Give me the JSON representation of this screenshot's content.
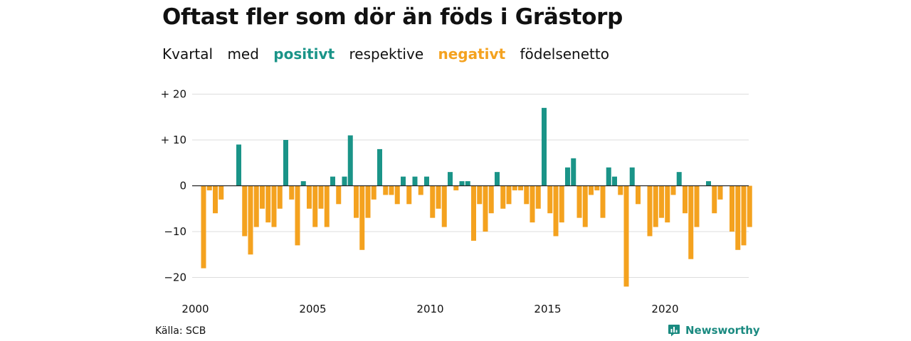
{
  "title": "Oftast fler som dör än föds i Grästorp",
  "subtitle": {
    "w1": "Kvartal",
    "w2": "med",
    "positive": "positivt",
    "w3": "respektive",
    "negative": "negativt",
    "w4": "födelsenetto"
  },
  "source": "Källa: SCB",
  "brand": {
    "name": "Newsworthy",
    "icon": "newsworthy-logo-icon"
  },
  "colors": {
    "positive": "#1a9488",
    "negative": "#f4a21f",
    "grid": "#dddddd",
    "zero": "#222222"
  },
  "chart_data": {
    "type": "bar",
    "x_ticks": [
      "2000",
      "2005",
      "2010",
      "2015",
      "2020"
    ],
    "y_ticks": [
      {
        "value": 20,
        "label": "+ 20"
      },
      {
        "value": 10,
        "label": "+ 10"
      },
      {
        "value": 0,
        "label": "0"
      },
      {
        "value": -10,
        "label": "−10"
      },
      {
        "value": -20,
        "label": "−20"
      }
    ],
    "ylim": [
      -22,
      20
    ],
    "start": "2000 Q1",
    "grid": true,
    "values": [
      -18,
      -1,
      -6,
      -3,
      0,
      0,
      9,
      -11,
      -15,
      -9,
      -5,
      -8,
      -9,
      -5,
      10,
      -3,
      -13,
      1,
      -5,
      -9,
      -5,
      -9,
      2,
      -4,
      2,
      11,
      -7,
      -14,
      -7,
      -3,
      8,
      -2,
      -2,
      -4,
      2,
      -4,
      2,
      -2,
      2,
      -7,
      -5,
      -9,
      3,
      -1,
      1,
      1,
      -12,
      -4,
      -10,
      -6,
      3,
      -5,
      -4,
      -1,
      -1,
      -4,
      -8,
      -5,
      17,
      -6,
      -11,
      -8,
      4,
      6,
      -7,
      -9,
      -2,
      -1,
      -7,
      4,
      2,
      -2,
      -22,
      4,
      -4,
      0,
      -11,
      -9,
      -7,
      -8,
      -2,
      3,
      -6,
      -16,
      -9,
      0,
      1,
      -6,
      -3,
      0,
      -10,
      -14,
      -13,
      -9
    ]
  }
}
